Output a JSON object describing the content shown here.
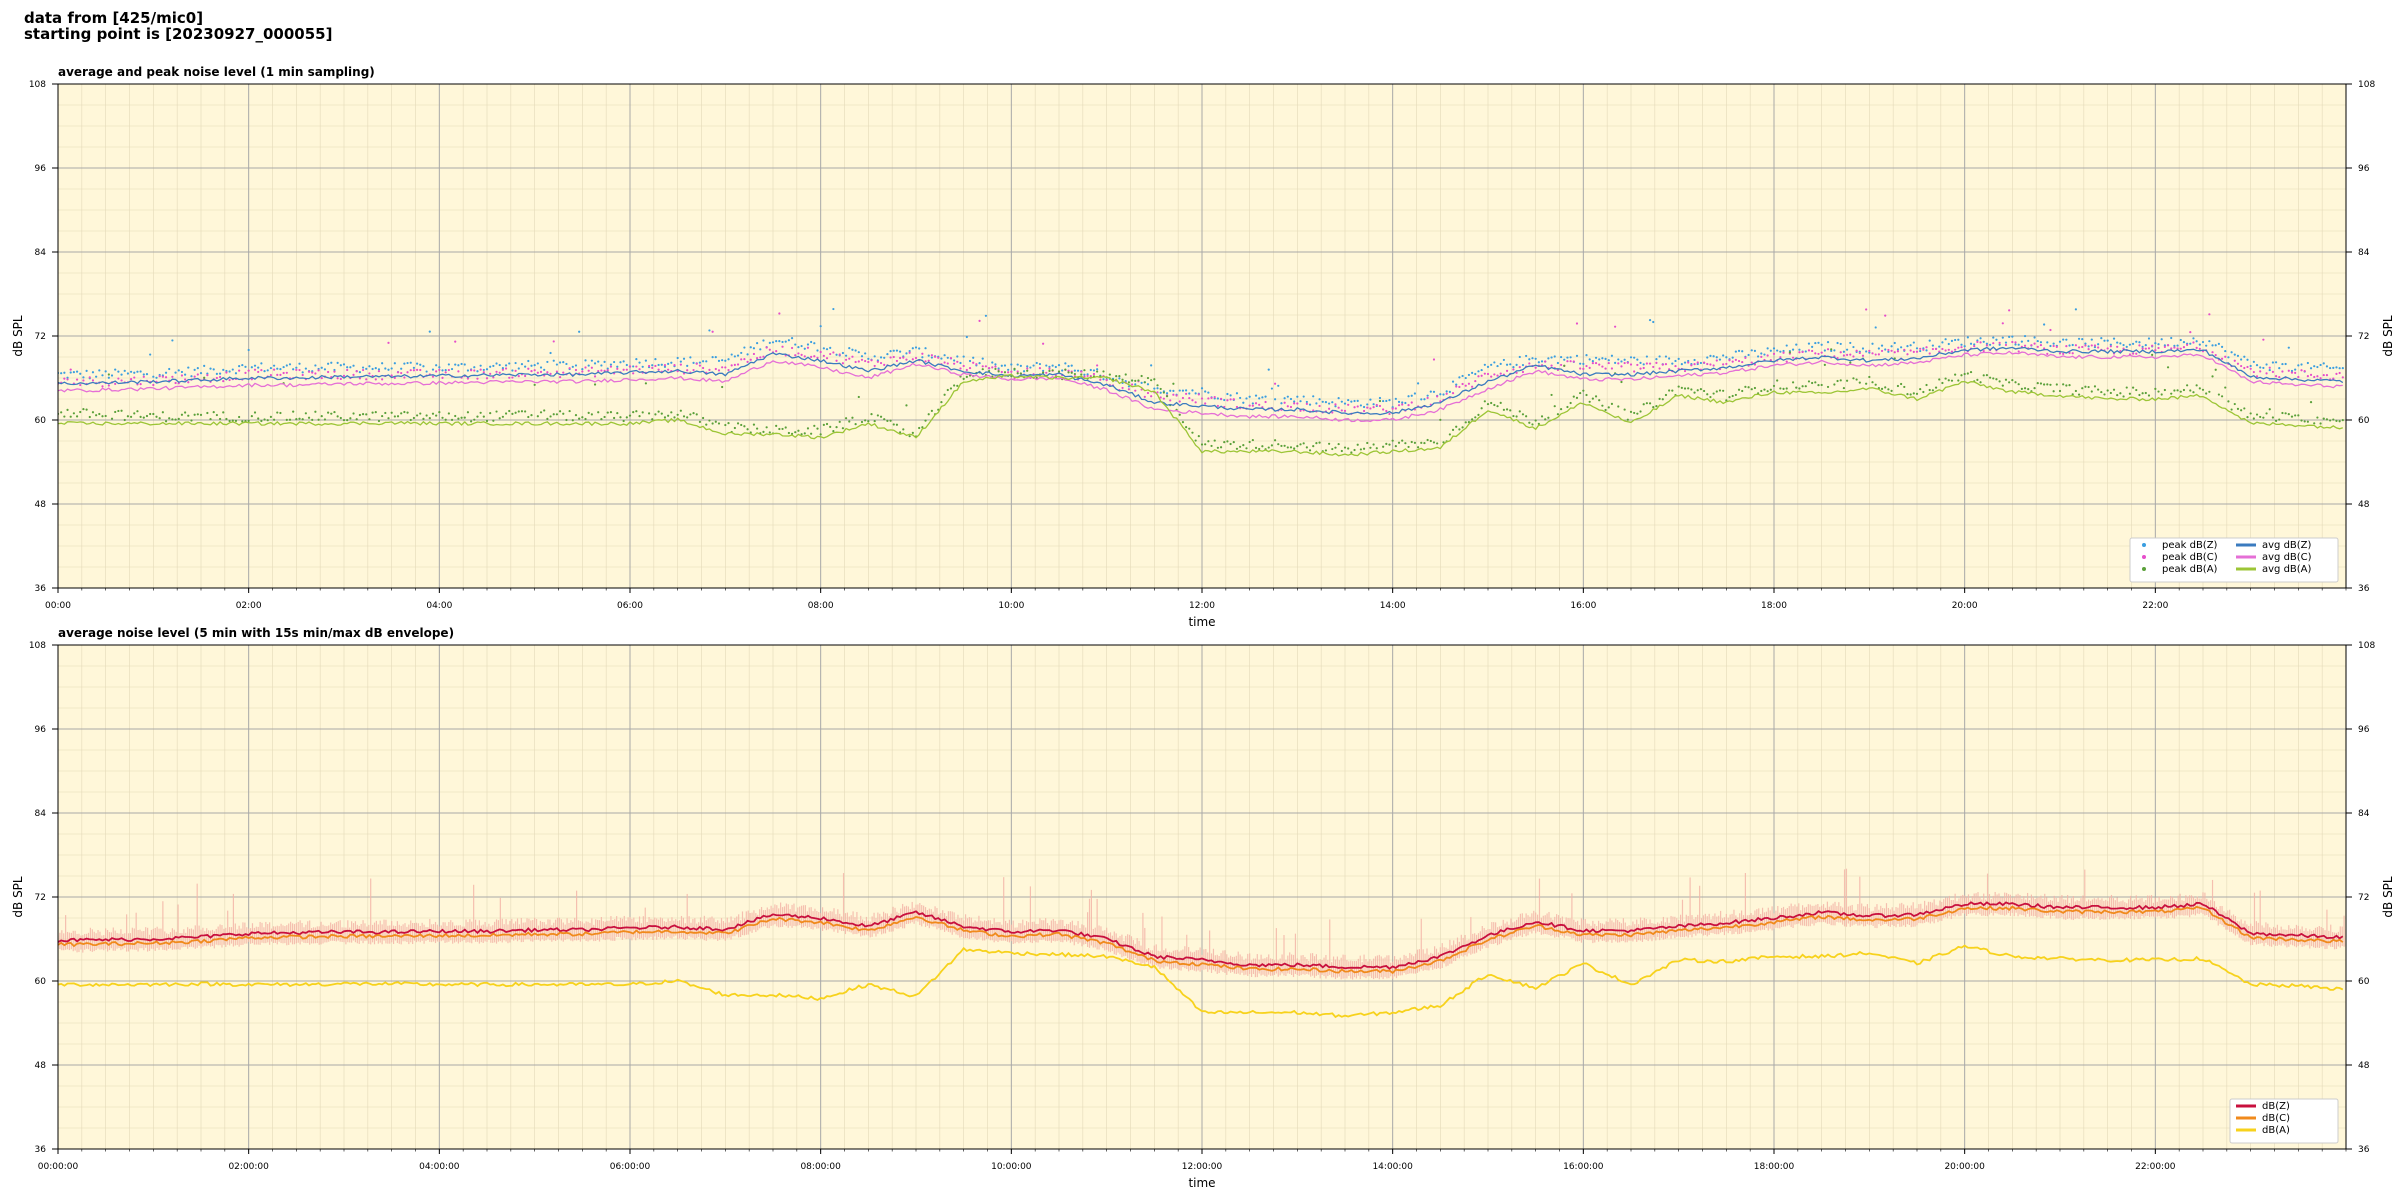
{
  "header": {
    "line1": "data from [425/mic0]",
    "line2": "starting point is [20230927_000055]"
  },
  "chart_data": [
    {
      "type": "line",
      "title": "average and peak noise level (1 min sampling)",
      "xlabel": "time",
      "ylabel": "dB SPL",
      "xlim_hours": [
        0,
        24
      ],
      "ylim": [
        36,
        108
      ],
      "y_ticks": [
        36,
        48,
        60,
        72,
        84,
        96,
        108
      ],
      "x_ticks": [
        "00:00",
        "02:00",
        "04:00",
        "06:00",
        "08:00",
        "10:00",
        "12:00",
        "14:00",
        "16:00",
        "18:00",
        "20:00",
        "22:00"
      ],
      "grid": true,
      "background": "#fff7d9",
      "legend_position": "lower-right",
      "legend_columns": 2,
      "x_hours": [
        0,
        0.5,
        1,
        1.5,
        2,
        2.5,
        3,
        3.5,
        4,
        4.5,
        5,
        5.5,
        6,
        6.5,
        7,
        7.5,
        8,
        8.5,
        9,
        9.5,
        10,
        10.5,
        11,
        11.5,
        12,
        12.5,
        13,
        13.5,
        14,
        14.5,
        15,
        15.5,
        16,
        16.5,
        17,
        17.5,
        18,
        18.5,
        19,
        19.5,
        20,
        20.5,
        21,
        21.5,
        22,
        22.5,
        23,
        23.5,
        24
      ],
      "series": [
        {
          "name": "peak dB(Z)",
          "kind": "scatter",
          "color": "#3a9ee0",
          "values": [
            66.5,
            66.5,
            66.7,
            67,
            67.5,
            67.5,
            67.5,
            67.5,
            67.5,
            67.6,
            67.8,
            67.8,
            68.2,
            68.3,
            68.5,
            71.5,
            70.5,
            69,
            69.8,
            68.6,
            67.3,
            67.8,
            66.3,
            64.5,
            64,
            63,
            63,
            62.5,
            62.5,
            64,
            67.5,
            68.8,
            68.7,
            68.5,
            68.5,
            69,
            69.8,
            70.5,
            70.3,
            70.5,
            71.2,
            71.5,
            71,
            71,
            71,
            71.5,
            68,
            67.5,
            67.3
          ]
        },
        {
          "name": "peak dB(C)",
          "kind": "scatter",
          "color": "#e64ecb",
          "values": [
            65.5,
            65.5,
            65.7,
            66,
            66.5,
            66.5,
            66.5,
            66.5,
            66.5,
            66.6,
            66.8,
            66.8,
            67.2,
            67.3,
            67.5,
            70,
            69.5,
            68,
            69.2,
            67.8,
            66.5,
            67,
            65.5,
            63.5,
            63,
            62,
            62,
            61.5,
            61.5,
            63,
            66.5,
            67.8,
            67.7,
            67.5,
            67.5,
            68,
            68.8,
            69.5,
            69.3,
            69.5,
            70.5,
            70.5,
            70,
            70,
            70,
            70.5,
            67,
            66.5,
            66.3
          ]
        },
        {
          "name": "peak dB(A)",
          "kind": "scatter",
          "color": "#5aa03a",
          "values": [
            61,
            60.8,
            60.5,
            60.5,
            60.5,
            60.5,
            60.5,
            60.5,
            60.5,
            60.5,
            60.8,
            60.5,
            60.5,
            61,
            59,
            58.5,
            58.5,
            60.5,
            57.8,
            66.5,
            66.8,
            66.5,
            66.5,
            65.5,
            56.5,
            56.5,
            56.5,
            55.8,
            56.5,
            56.8,
            62.5,
            59.8,
            63.5,
            60.5,
            64.5,
            63.5,
            65,
            64.8,
            65.5,
            64,
            66.5,
            65,
            64.5,
            64,
            64,
            64.5,
            60.5,
            60.3,
            59.8
          ]
        },
        {
          "name": "avg dB(Z)",
          "kind": "line",
          "color": "#3b7bbf",
          "values": [
            65.2,
            65.3,
            65.5,
            65.7,
            66,
            66,
            66.2,
            66.2,
            66.3,
            66.4,
            66.5,
            66.5,
            66.8,
            67,
            66.5,
            69.5,
            68.5,
            67,
            68.5,
            67,
            66.3,
            66.5,
            65,
            62.5,
            62,
            61.5,
            61.5,
            61,
            61,
            62.5,
            65.5,
            67.8,
            66.5,
            66.5,
            67,
            67.5,
            68.5,
            69,
            68.5,
            68.8,
            70,
            70.3,
            69.8,
            69.8,
            69.8,
            70,
            66.2,
            65.8,
            65.5
          ]
        },
        {
          "name": "avg dB(C)",
          "kind": "line",
          "color": "#e56fd6",
          "values": [
            64.2,
            64.3,
            64.5,
            64.7,
            65,
            65,
            65.2,
            65.2,
            65.3,
            65.4,
            65.5,
            65.5,
            65.8,
            66,
            65.5,
            68.5,
            67.5,
            66,
            68,
            66.5,
            65.8,
            66,
            64.3,
            61.5,
            61,
            60.5,
            60.5,
            60,
            60,
            61.5,
            64.5,
            67,
            65.8,
            65.8,
            66.3,
            66.8,
            67.8,
            68.3,
            67.8,
            68.2,
            69.3,
            69.6,
            69,
            69,
            69,
            69.3,
            65.5,
            65,
            64.8
          ]
        },
        {
          "name": "avg dB(A)",
          "kind": "line",
          "color": "#9cc536",
          "values": [
            59.5,
            59.5,
            59.5,
            59.5,
            59.5,
            59.5,
            59.5,
            59.6,
            59.5,
            59.5,
            59.5,
            59.5,
            59.5,
            60,
            58,
            58,
            57.5,
            59.5,
            57.5,
            65.5,
            66.3,
            66,
            66,
            64,
            55.5,
            55.5,
            55.5,
            55,
            55.5,
            56,
            61.5,
            58.8,
            62.5,
            59.5,
            63.5,
            62.5,
            64,
            63.8,
            64.5,
            63,
            65.5,
            64,
            63.5,
            63,
            63,
            63.5,
            59.5,
            59.3,
            58.8
          ]
        }
      ]
    },
    {
      "type": "line",
      "title": "average noise level (5 min with 15s min/max dB envelope)",
      "xlabel": "time",
      "ylabel": "dB SPL",
      "xlim_hours": [
        0,
        24
      ],
      "ylim": [
        36,
        108
      ],
      "y_ticks": [
        36,
        48,
        60,
        72,
        84,
        96,
        108
      ],
      "x_ticks": [
        "00:00:00",
        "02:00:00",
        "04:00:00",
        "06:00:00",
        "08:00:00",
        "10:00:00",
        "12:00:00",
        "14:00:00",
        "16:00:00",
        "18:00:00",
        "20:00:00",
        "22:00:00"
      ],
      "grid": true,
      "background": "#fff7d9",
      "legend_position": "lower-right",
      "legend_columns": 1,
      "envelope_color": "#f4b6a8",
      "x_hours": [
        0,
        0.5,
        1,
        1.5,
        2,
        2.5,
        3,
        3.5,
        4,
        4.5,
        5,
        5.5,
        6,
        6.5,
        7,
        7.5,
        8,
        8.5,
        9,
        9.5,
        10,
        10.5,
        11,
        11.5,
        12,
        12.5,
        13,
        13.5,
        14,
        14.5,
        15,
        15.5,
        16,
        16.5,
        17,
        17.5,
        18,
        18.5,
        19,
        19.5,
        20,
        20.5,
        21,
        21.5,
        22,
        22.5,
        23,
        23.5,
        24
      ],
      "series": [
        {
          "name": "dB(Z)",
          "kind": "line",
          "color": "#c8103e",
          "values": [
            65.8,
            65.9,
            66,
            66.3,
            66.8,
            66.9,
            67,
            67,
            67.1,
            67.1,
            67.3,
            67.3,
            67.6,
            67.7,
            67.4,
            69.5,
            69,
            67.8,
            69.8,
            67.8,
            67,
            67.3,
            66,
            63.5,
            63,
            62.3,
            62.3,
            62,
            62,
            63.5,
            66.5,
            68.5,
            67.2,
            67.2,
            67.8,
            68.3,
            69,
            69.8,
            69.3,
            69.5,
            71,
            71,
            70.5,
            70.5,
            70.5,
            71,
            66.8,
            66.5,
            66.2
          ]
        },
        {
          "name": "dB(C)",
          "kind": "line",
          "color": "#f08a1c",
          "values": [
            65.2,
            65.3,
            65.4,
            65.7,
            66.2,
            66.3,
            66.4,
            66.4,
            66.5,
            66.5,
            66.7,
            66.7,
            67,
            67.1,
            66.8,
            68.9,
            68.4,
            67.2,
            69.2,
            67.2,
            66.4,
            66.7,
            65.4,
            62.9,
            62.4,
            61.7,
            61.7,
            61.4,
            61.4,
            62.9,
            65.9,
            67.9,
            66.6,
            66.6,
            67.2,
            67.7,
            68.4,
            69.2,
            68.7,
            68.9,
            70.4,
            70.4,
            69.9,
            69.9,
            69.9,
            70.4,
            66.2,
            65.9,
            65.6
          ]
        },
        {
          "name": "dB(A)",
          "kind": "line",
          "color": "#f7d21c",
          "values": [
            59.5,
            59.5,
            59.5,
            59.6,
            59.5,
            59.5,
            59.6,
            59.6,
            59.5,
            59.5,
            59.5,
            59.5,
            59.5,
            60,
            58,
            58,
            57.5,
            59.5,
            57.8,
            64.5,
            64,
            63.8,
            63.5,
            62,
            55.5,
            55.5,
            55.5,
            55,
            55.5,
            56.5,
            61,
            59,
            62.5,
            59.5,
            63,
            62.8,
            63.5,
            63.5,
            64,
            62.5,
            65,
            63.5,
            63.2,
            63,
            63,
            63.2,
            59.5,
            59.3,
            58.8
          ]
        }
      ]
    }
  ]
}
